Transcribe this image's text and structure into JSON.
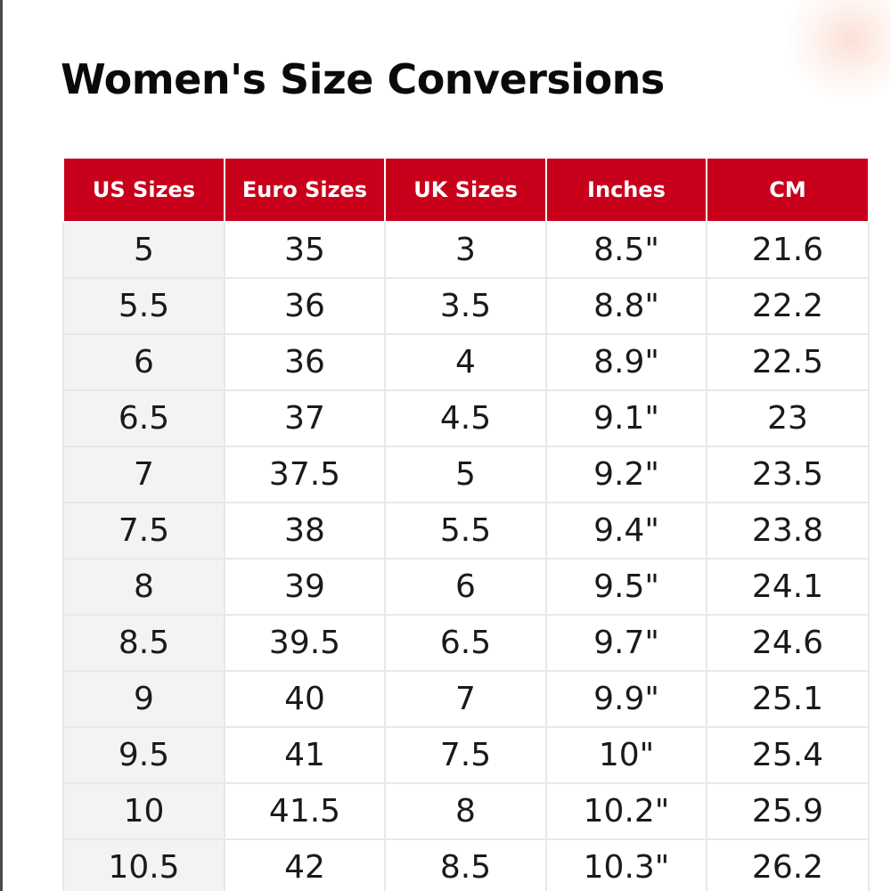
{
  "title": "Women's Size Conversions",
  "colors": {
    "header_bg": "#c8001b",
    "header_text": "#ffffff",
    "first_column_bg": "#f3f3f3",
    "border": "#e8e8e8"
  },
  "table": {
    "headers": [
      "US Sizes",
      "Euro Sizes",
      "UK Sizes",
      "Inches",
      "CM"
    ],
    "rows": [
      [
        "5",
        "35",
        "3",
        "8.5\"",
        "21.6"
      ],
      [
        "5.5",
        "36",
        "3.5",
        "8.8\"",
        "22.2"
      ],
      [
        "6",
        "36",
        "4",
        "8.9\"",
        "22.5"
      ],
      [
        "6.5",
        "37",
        "4.5",
        "9.1\"",
        "23"
      ],
      [
        "7",
        "37.5",
        "5",
        "9.2\"",
        "23.5"
      ],
      [
        "7.5",
        "38",
        "5.5",
        "9.4\"",
        "23.8"
      ],
      [
        "8",
        "39",
        "6",
        "9.5\"",
        "24.1"
      ],
      [
        "8.5",
        "39.5",
        "6.5",
        "9.7\"",
        "24.6"
      ],
      [
        "9",
        "40",
        "7",
        "9.9\"",
        "25.1"
      ],
      [
        "9.5",
        "41",
        "7.5",
        "10\"",
        "25.4"
      ],
      [
        "10",
        "41.5",
        "8",
        "10.2\"",
        "25.9"
      ],
      [
        "10.5",
        "42",
        "8.5",
        "10.3\"",
        "26.2"
      ]
    ]
  }
}
